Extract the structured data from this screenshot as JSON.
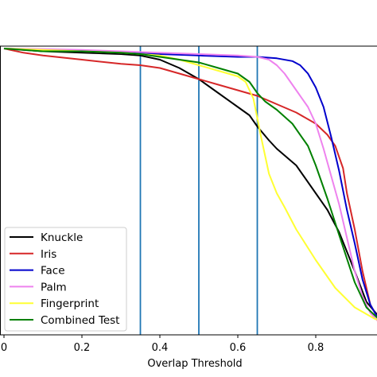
{
  "chart_data": {
    "type": "line",
    "title": "",
    "xlabel": "Overlap Threshold",
    "ylabel": "",
    "xlim": [
      0.0,
      0.97
    ],
    "ylim": [
      0.0,
      1.0
    ],
    "grid": false,
    "legend_position": "lower-left",
    "xticks": [
      {
        "value": 0.0,
        "label": "0"
      },
      {
        "value": 0.2,
        "label": "0.2"
      },
      {
        "value": 0.4,
        "label": "0.4"
      },
      {
        "value": 0.6,
        "label": "0.6"
      },
      {
        "value": 0.8,
        "label": "0.8"
      }
    ],
    "vlines": {
      "x": [
        0.35,
        0.5,
        0.65
      ],
      "color": "#1f77b4"
    },
    "series": [
      {
        "name": "Knuckle",
        "color": "#000000",
        "x": [
          0.0,
          0.1,
          0.2,
          0.3,
          0.35,
          0.4,
          0.45,
          0.5,
          0.55,
          0.6,
          0.63,
          0.65,
          0.68,
          0.7,
          0.75,
          0.8,
          0.83,
          0.86,
          0.9,
          0.93,
          0.96,
          0.97
        ],
        "y": [
          1.0,
          0.99,
          0.985,
          0.98,
          0.975,
          0.96,
          0.93,
          0.89,
          0.84,
          0.79,
          0.76,
          0.72,
          0.67,
          0.64,
          0.58,
          0.48,
          0.42,
          0.34,
          0.2,
          0.09,
          0.04,
          0.03
        ]
      },
      {
        "name": "Iris",
        "color": "#d62728",
        "x": [
          0.0,
          0.05,
          0.1,
          0.2,
          0.3,
          0.35,
          0.4,
          0.45,
          0.5,
          0.55,
          0.6,
          0.65,
          0.7,
          0.75,
          0.8,
          0.83,
          0.85,
          0.87,
          0.88,
          0.9,
          0.92,
          0.94,
          0.96,
          0.97
        ],
        "y": [
          1.0,
          0.985,
          0.975,
          0.96,
          0.945,
          0.94,
          0.93,
          0.91,
          0.89,
          0.87,
          0.85,
          0.83,
          0.8,
          0.77,
          0.73,
          0.69,
          0.65,
          0.57,
          0.48,
          0.35,
          0.2,
          0.08,
          0.03,
          0.02
        ]
      },
      {
        "name": "Face",
        "color": "#0000cc",
        "x": [
          0.0,
          0.1,
          0.2,
          0.3,
          0.4,
          0.5,
          0.6,
          0.65,
          0.7,
          0.74,
          0.76,
          0.78,
          0.8,
          0.82,
          0.84,
          0.86,
          0.88,
          0.9,
          0.92,
          0.94,
          0.96,
          0.97
        ],
        "y": [
          1.0,
          0.995,
          0.99,
          0.985,
          0.98,
          0.975,
          0.97,
          0.97,
          0.965,
          0.955,
          0.94,
          0.91,
          0.86,
          0.79,
          0.68,
          0.56,
          0.42,
          0.3,
          0.17,
          0.08,
          0.03,
          0.02
        ]
      },
      {
        "name": "Palm",
        "color": "#ee82ee",
        "x": [
          0.0,
          0.1,
          0.2,
          0.3,
          0.4,
          0.5,
          0.6,
          0.65,
          0.68,
          0.7,
          0.72,
          0.75,
          0.78,
          0.8,
          0.82,
          0.84,
          0.86,
          0.88,
          0.9,
          0.92,
          0.94,
          0.96,
          0.97
        ],
        "y": [
          1.0,
          0.998,
          0.995,
          0.99,
          0.985,
          0.98,
          0.975,
          0.97,
          0.96,
          0.94,
          0.91,
          0.85,
          0.79,
          0.73,
          0.64,
          0.54,
          0.44,
          0.32,
          0.2,
          0.11,
          0.05,
          0.02,
          0.02
        ]
      },
      {
        "name": "Fingerprint",
        "color": "#ffff33",
        "x": [
          0.0,
          0.1,
          0.2,
          0.3,
          0.35,
          0.4,
          0.45,
          0.5,
          0.55,
          0.6,
          0.62,
          0.64,
          0.66,
          0.68,
          0.7,
          0.72,
          0.75,
          0.8,
          0.85,
          0.9,
          0.95,
          0.97
        ],
        "y": [
          1.0,
          0.995,
          0.99,
          0.985,
          0.98,
          0.975,
          0.96,
          0.94,
          0.92,
          0.9,
          0.88,
          0.82,
          0.68,
          0.55,
          0.48,
          0.43,
          0.35,
          0.24,
          0.14,
          0.07,
          0.03,
          0.02
        ]
      },
      {
        "name": "Combined Test",
        "color": "#008000",
        "x": [
          0.0,
          0.1,
          0.2,
          0.3,
          0.35,
          0.4,
          0.45,
          0.5,
          0.55,
          0.6,
          0.63,
          0.65,
          0.67,
          0.7,
          0.74,
          0.78,
          0.8,
          0.83,
          0.86,
          0.9,
          0.93,
          0.96,
          0.97
        ],
        "y": [
          1.0,
          0.99,
          0.99,
          0.985,
          0.98,
          0.97,
          0.96,
          0.95,
          0.93,
          0.91,
          0.88,
          0.84,
          0.81,
          0.78,
          0.73,
          0.65,
          0.58,
          0.46,
          0.33,
          0.16,
          0.07,
          0.03,
          0.02
        ]
      }
    ]
  }
}
